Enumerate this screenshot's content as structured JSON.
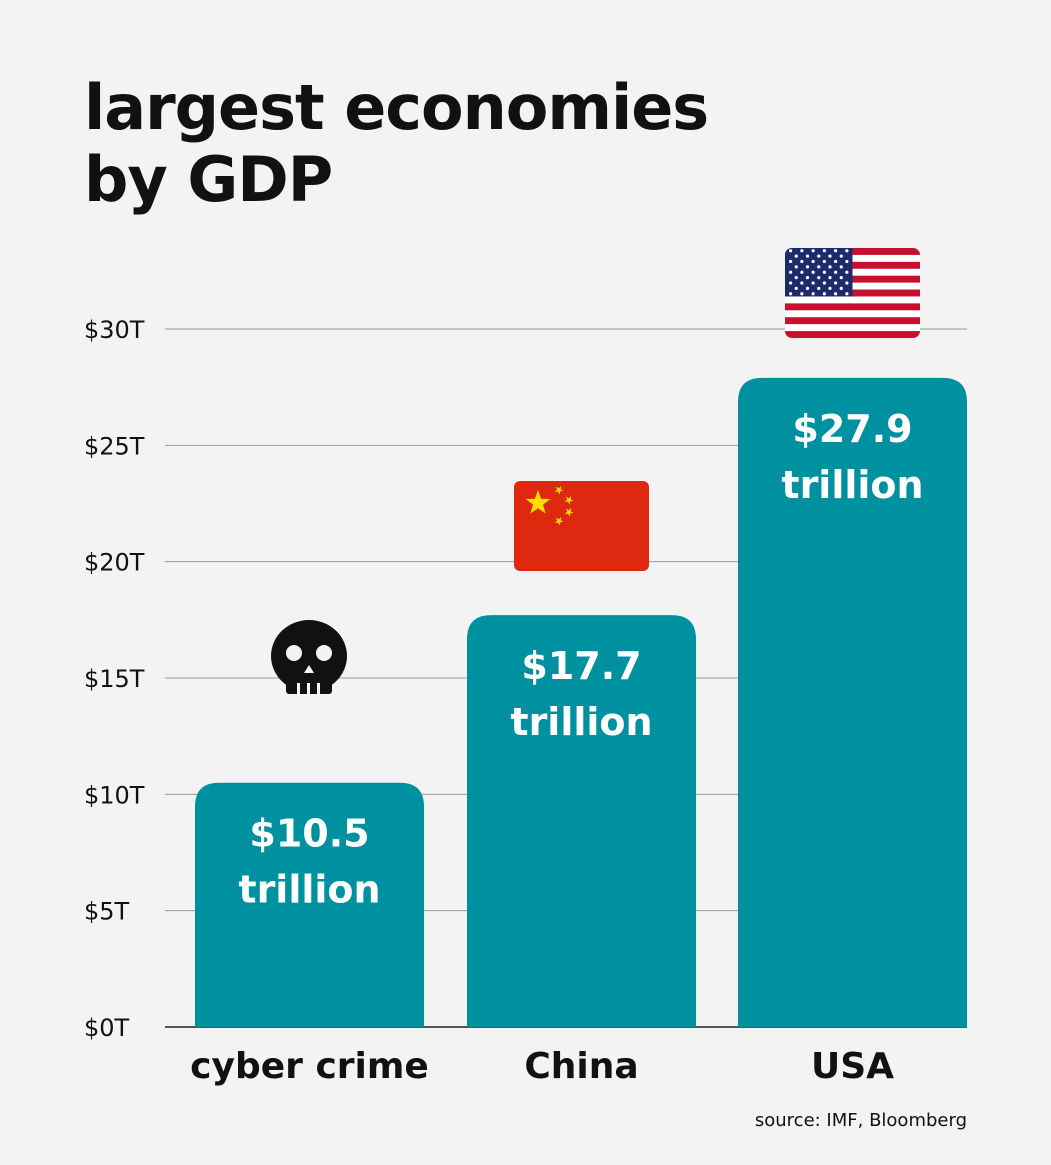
{
  "title": {
    "line1": "largest economies",
    "line2": "by GDP"
  },
  "source": "source: IMF, Bloomberg",
  "colors": {
    "bar": "#0091a0",
    "bar_label": "#ffffff",
    "grid": "#9a9a9a",
    "text": "#111111",
    "background": "#f3f3f3"
  },
  "chart_data": {
    "type": "bar",
    "categories": [
      "cyber crime",
      "China",
      "USA"
    ],
    "values": [
      10.5,
      17.7,
      27.9
    ],
    "bar_labels": [
      [
        "$10.5",
        "trillion"
      ],
      [
        "$17.7",
        "trillion"
      ],
      [
        "$27.9",
        "trillion"
      ]
    ],
    "icons": [
      "skull-icon",
      "china-flag-icon",
      "usa-flag-icon"
    ],
    "yticks": [
      0,
      5,
      10,
      15,
      20,
      25,
      30
    ],
    "ytick_labels": [
      "$0T",
      "$5T",
      "$10T",
      "$15T",
      "$20T",
      "$25T",
      "$30T"
    ],
    "ylim": [
      0,
      30
    ],
    "grid": true,
    "title": "largest economies by GDP",
    "xlabel": "",
    "ylabel": ""
  }
}
